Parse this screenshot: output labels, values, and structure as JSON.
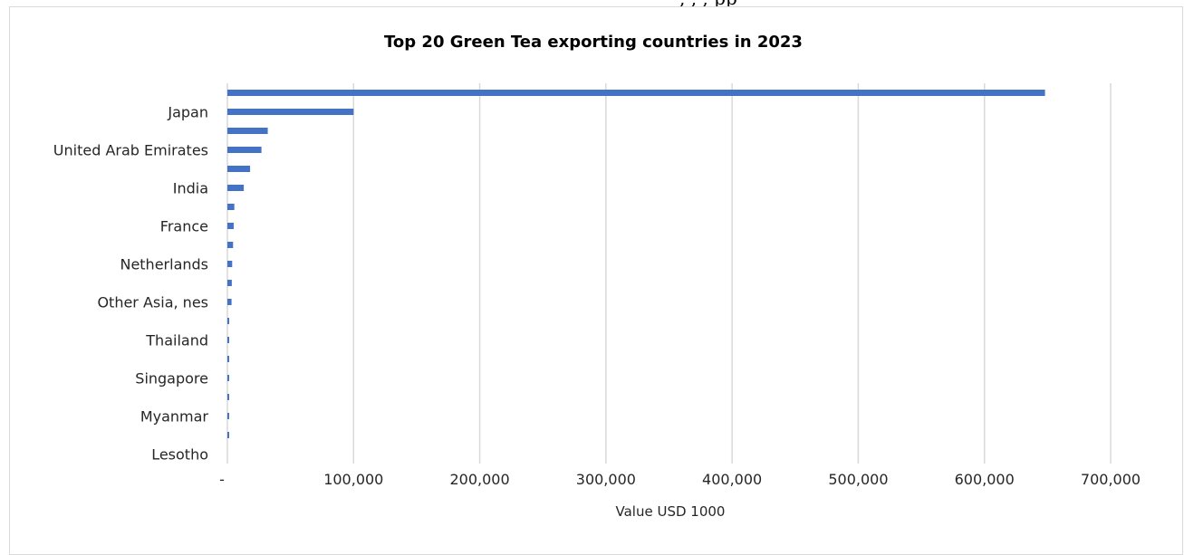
{
  "top_fragment": ", , ,                        pp",
  "colors": {
    "bar": "#4472c4",
    "grid": "#d9d9d9",
    "text": "#262626"
  },
  "chart_data": {
    "type": "bar",
    "orientation": "horizontal",
    "title": "Top 20 Green Tea exporting countries in 2023",
    "xlabel": "Value USD 1000",
    "ylabel": "",
    "xlim": [
      0,
      700000
    ],
    "grid": true,
    "legend": "none",
    "x_ticks": [
      "-",
      "100,000",
      "200,000",
      "300,000",
      "400,000",
      "500,000",
      "600,000",
      "700,000"
    ],
    "categories": [
      "",
      "Japan",
      "",
      "United Arab Emirates",
      "",
      "India",
      "",
      "France",
      "",
      "Netherlands",
      "",
      "Other Asia, nes",
      "",
      "Thailand",
      "",
      "Singapore",
      "",
      "Myanmar",
      "",
      "Lesotho"
    ],
    "values": [
      648000,
      100000,
      32000,
      27000,
      18000,
      13000,
      5500,
      5000,
      4500,
      3800,
      3500,
      3300,
      1300,
      1100,
      1000,
      900,
      800,
      700,
      600,
      0
    ]
  }
}
